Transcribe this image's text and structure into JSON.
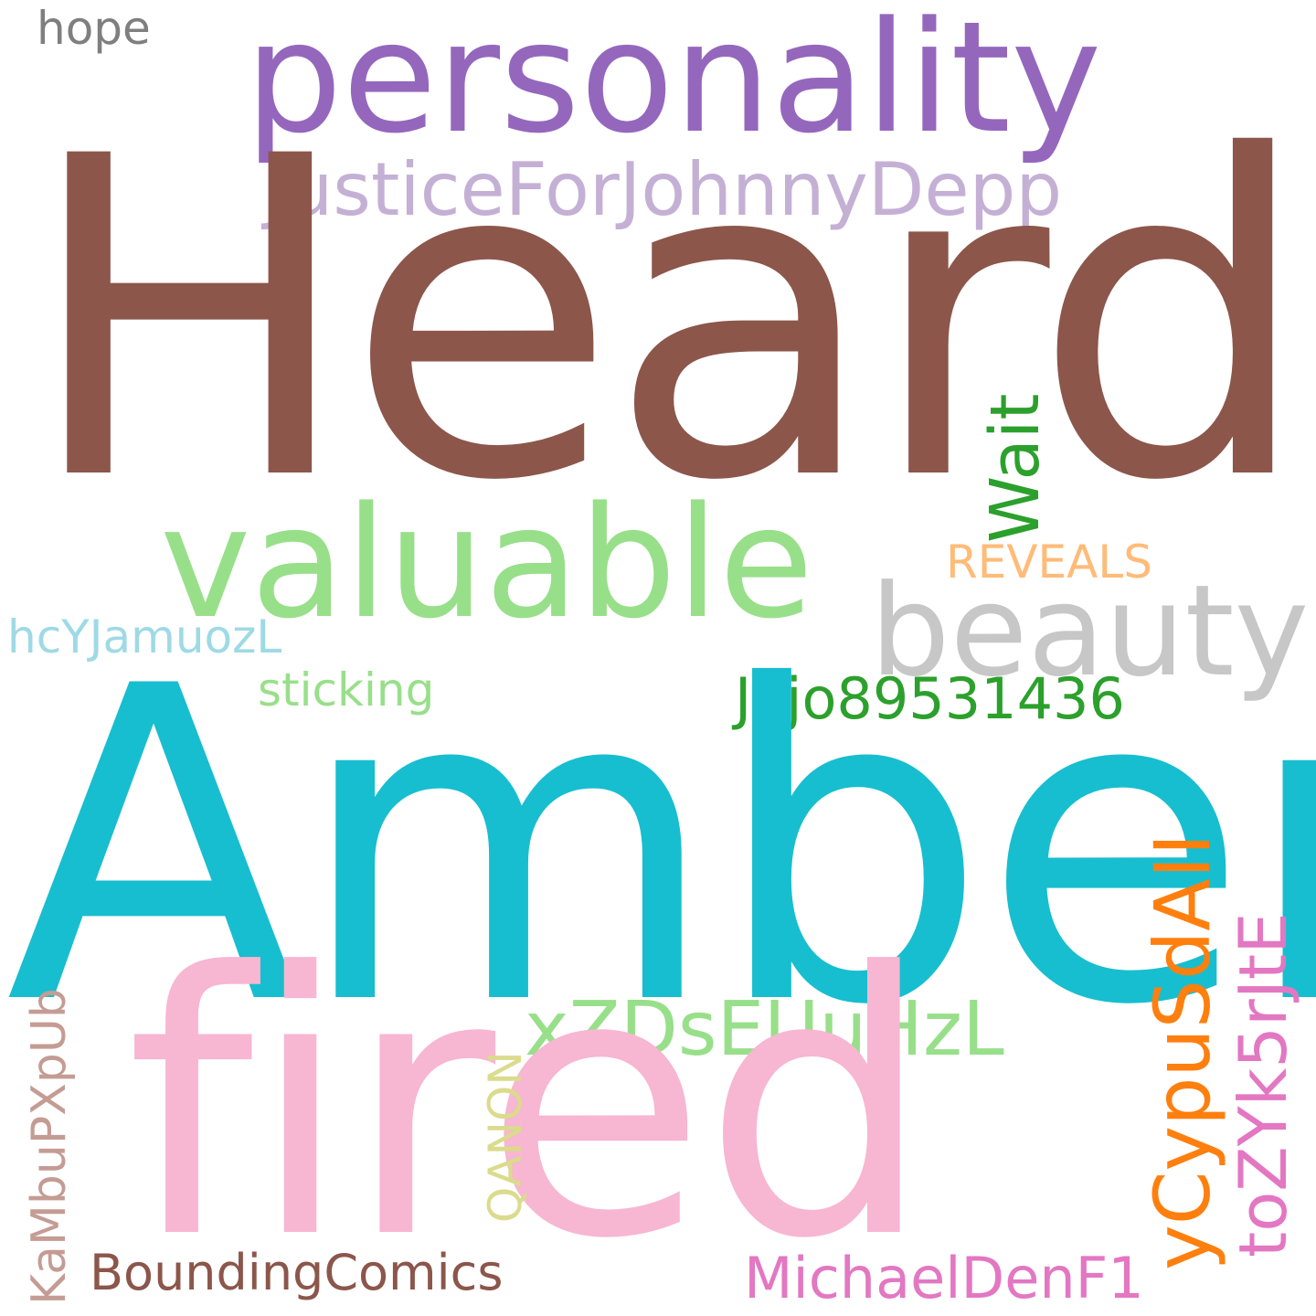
{
  "cloud": {
    "words": [
      {
        "text": "hope",
        "color": "#7f7f7f"
      },
      {
        "text": "personality",
        "color": "#9467bd"
      },
      {
        "text": "JusticeForJohnnyDepp",
        "color": "#c5b0d5"
      },
      {
        "text": "Heard",
        "color": "#8c564b"
      },
      {
        "text": "valuable",
        "color": "#98df8a"
      },
      {
        "text": "Wait",
        "color": "#2ca02c"
      },
      {
        "text": "REVEALS",
        "color": "#ffbb78"
      },
      {
        "text": "beauty",
        "color": "#c7c7c7"
      },
      {
        "text": "hcYJamuozL",
        "color": "#9edae5"
      },
      {
        "text": "sticking",
        "color": "#98df8a"
      },
      {
        "text": "Jojo89531436",
        "color": "#2ca02c"
      },
      {
        "text": "Amber",
        "color": "#17becf"
      },
      {
        "text": "xZDsEUuHzL",
        "color": "#98df8a"
      },
      {
        "text": "fired",
        "color": "#f7b6d2"
      },
      {
        "text": "yCypuSdAII",
        "color": "#ff7f0e"
      },
      {
        "text": "toZYk5rJtE",
        "color": "#e377c2"
      },
      {
        "text": "KaMbuPXpUb",
        "color": "#c49c94"
      },
      {
        "text": "QANON",
        "color": "#dbdb8d"
      },
      {
        "text": "BoundingComics",
        "color": "#8c564b"
      },
      {
        "text": "MichaelDenF1",
        "color": "#e377c2"
      }
    ]
  }
}
